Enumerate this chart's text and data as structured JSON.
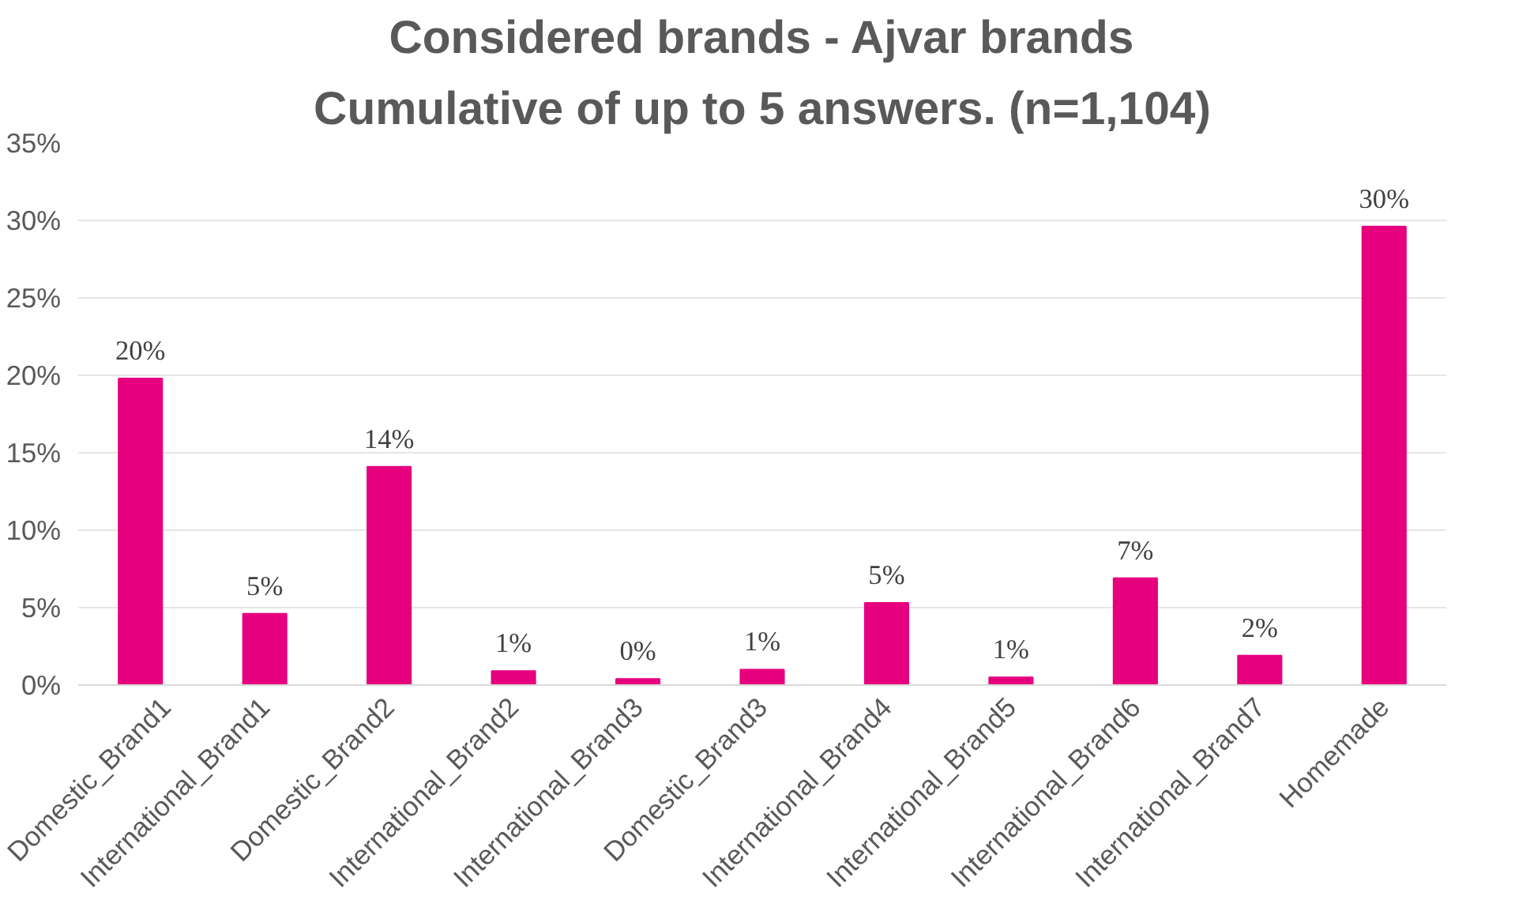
{
  "chart_data": {
    "type": "bar",
    "title": "Considered brands - Ajvar brands",
    "subtitle": "Cumulative of up to 5 answers. (n=1,104)",
    "categories": [
      "Domestic_Brand1",
      "International_Brand1",
      "Domestic_Brand2",
      "International_Brand2",
      "International_Brand3",
      "Domestic_Brand3",
      "International_Brand4",
      "International_Brand5",
      "International_Brand6",
      "International_Brand7",
      "Homemade"
    ],
    "values": [
      19.8,
      4.6,
      14.1,
      0.9,
      0.4,
      1.0,
      5.3,
      0.5,
      6.9,
      1.9,
      29.6
    ],
    "value_labels": [
      "20%",
      "5%",
      "14%",
      "1%",
      "0%",
      "1%",
      "5%",
      "1%",
      "7%",
      "2%",
      "30%"
    ],
    "color": "#e6007e",
    "ylim": [
      0,
      35
    ],
    "yticks": [
      {
        "value": 0,
        "label": "0%"
      },
      {
        "value": 5,
        "label": "5%"
      },
      {
        "value": 10,
        "label": "10%"
      },
      {
        "value": 15,
        "label": "15%"
      },
      {
        "value": 20,
        "label": "20%"
      },
      {
        "value": 25,
        "label": "25%"
      },
      {
        "value": 30,
        "label": "30%"
      },
      {
        "value": 35,
        "label": "35%"
      }
    ],
    "grid": "y"
  }
}
